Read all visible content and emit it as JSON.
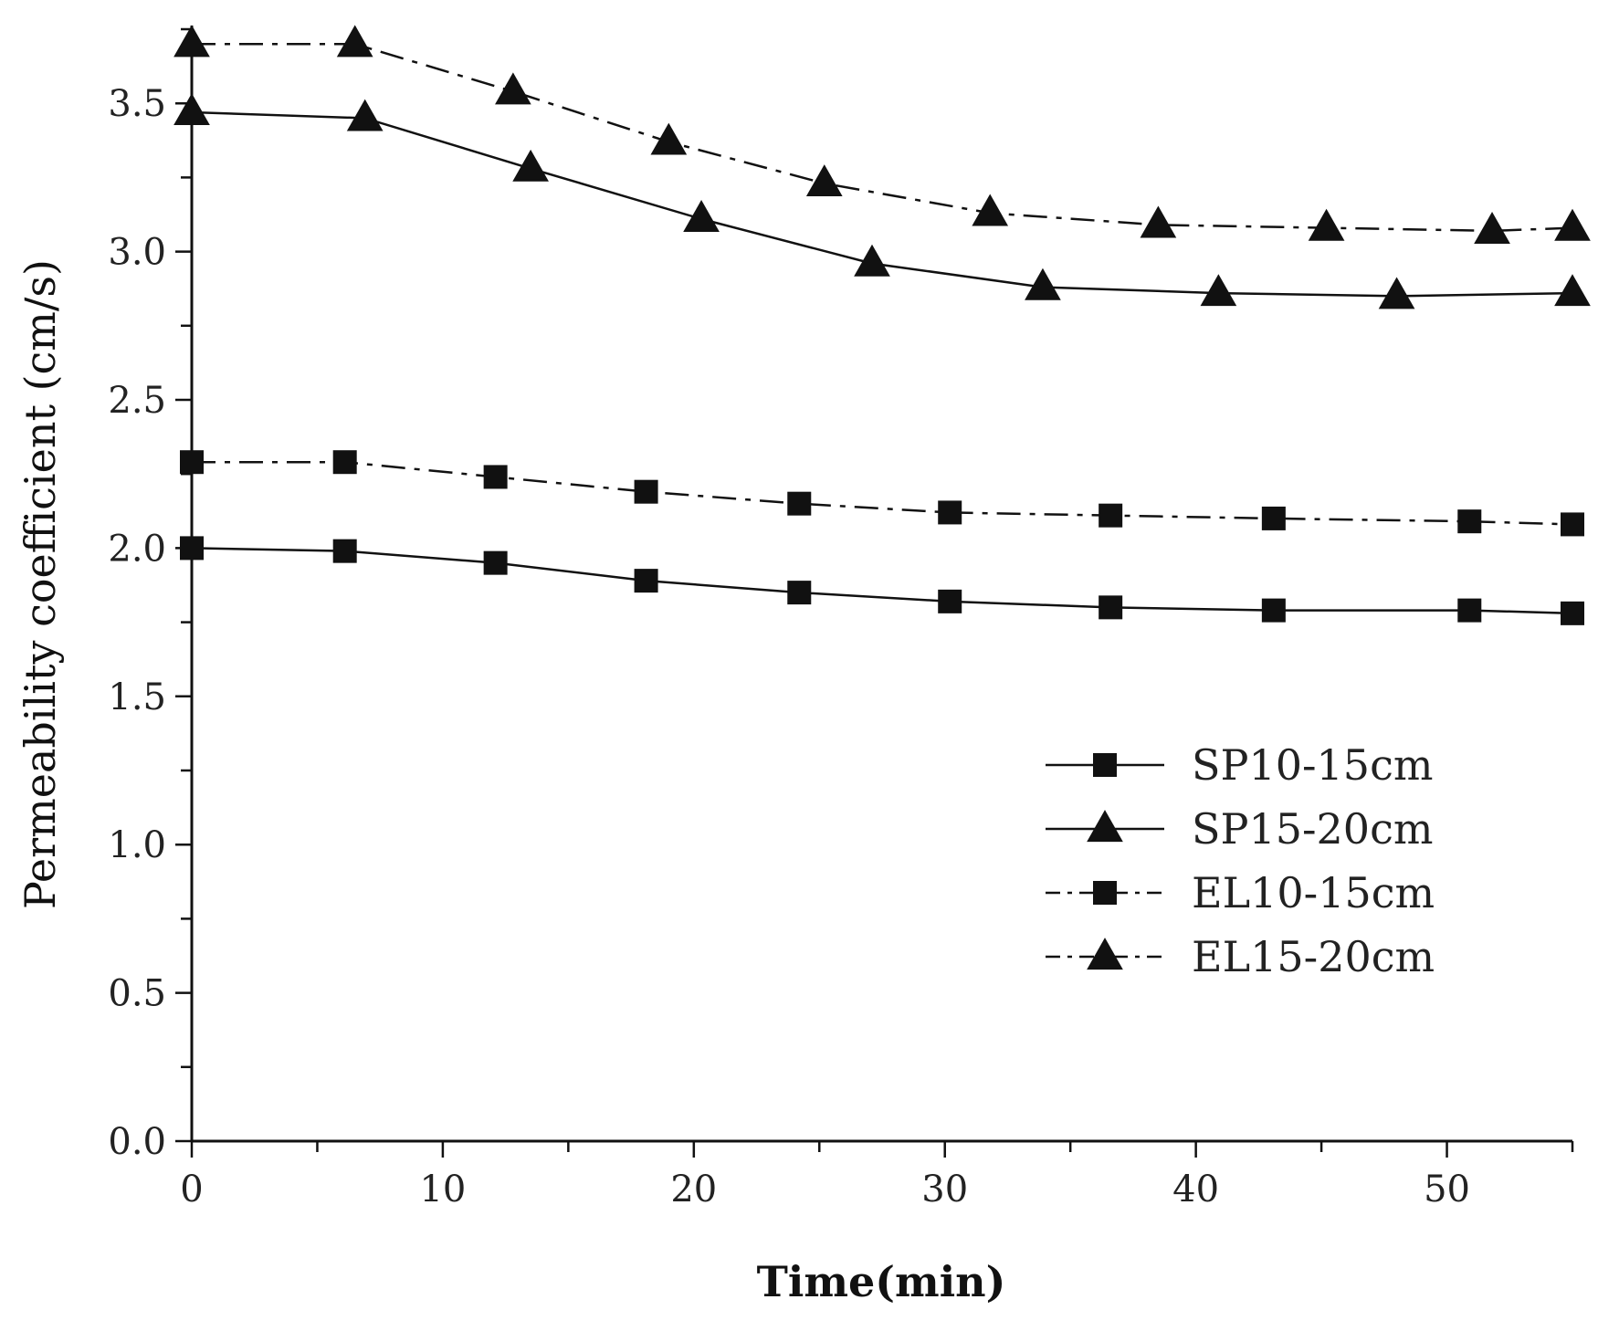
{
  "chart_data": {
    "type": "line",
    "title": "",
    "xlabel": "Time(min)",
    "ylabel": "Permeability coefficient (cm/s)",
    "xlim": [
      0,
      55
    ],
    "ylim": [
      0,
      3.75
    ],
    "x_ticks": [
      "0",
      "10",
      "20",
      "30",
      "40",
      "50"
    ],
    "y_ticks": [
      "0.0",
      "0.5",
      "1.0",
      "1.5",
      "2.0",
      "2.5",
      "3.0",
      "3.5"
    ],
    "grid": false,
    "legend_position": "center-right",
    "colors": {
      "line": "#111111",
      "axis": "#111111",
      "background": "#ffffff"
    },
    "series": [
      {
        "name": "SP10-15cm",
        "marker": "square",
        "dash": "solid",
        "x": [
          0,
          6.1,
          12.1,
          18.1,
          24.2,
          30.2,
          36.6,
          43.1,
          50.9,
          55
        ],
        "values": [
          2.0,
          1.99,
          1.95,
          1.89,
          1.85,
          1.82,
          1.8,
          1.79,
          1.79,
          1.78
        ]
      },
      {
        "name": "SP15-20cm",
        "marker": "triangle",
        "dash": "solid",
        "x": [
          0,
          6.9,
          13.5,
          20.3,
          27.1,
          33.9,
          40.9,
          48.0,
          55
        ],
        "values": [
          3.47,
          3.45,
          3.28,
          3.11,
          2.96,
          2.88,
          2.86,
          2.85,
          2.86
        ]
      },
      {
        "name": "EL10-15cm",
        "marker": "square",
        "dash": "dashdot",
        "x": [
          0,
          6.1,
          12.1,
          18.1,
          24.2,
          30.2,
          36.6,
          43.1,
          50.9,
          55
        ],
        "values": [
          2.29,
          2.29,
          2.24,
          2.19,
          2.15,
          2.12,
          2.11,
          2.1,
          2.09,
          2.08
        ]
      },
      {
        "name": "EL15-20cm",
        "marker": "triangle",
        "dash": "dashdot",
        "x": [
          0,
          6.5,
          12.8,
          19.0,
          25.2,
          31.8,
          38.5,
          45.2,
          51.8,
          55
        ],
        "values": [
          3.7,
          3.7,
          3.54,
          3.37,
          3.23,
          3.13,
          3.09,
          3.08,
          3.07,
          3.08
        ]
      }
    ]
  }
}
